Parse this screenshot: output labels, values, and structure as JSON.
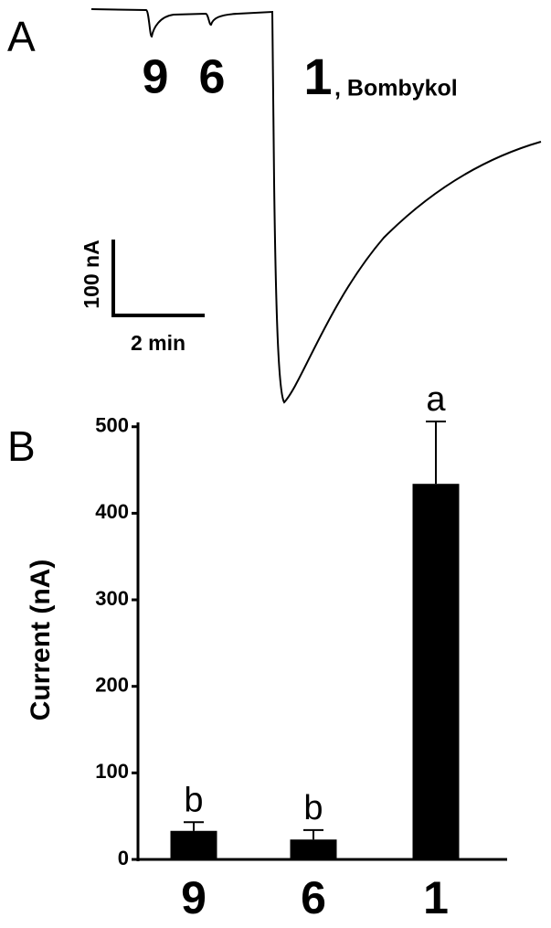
{
  "panel_a": {
    "label": "A",
    "peaks": [
      "9",
      "6",
      "1"
    ],
    "peak_note": ", Bombykol",
    "scale_y": "100 nA",
    "scale_x": "2 min"
  },
  "chart_data": {
    "type": "bar",
    "panel_label": "B",
    "ylabel": "Current (nA)",
    "categories": [
      "9",
      "6",
      "1"
    ],
    "values": [
      33,
      23,
      434
    ],
    "errors": [
      10,
      11,
      72
    ],
    "annotations": [
      "b",
      "b",
      "a"
    ],
    "color": "#000000",
    "ylim": [
      0,
      505
    ],
    "yticks": [
      0,
      100,
      200,
      300,
      400,
      500
    ]
  }
}
